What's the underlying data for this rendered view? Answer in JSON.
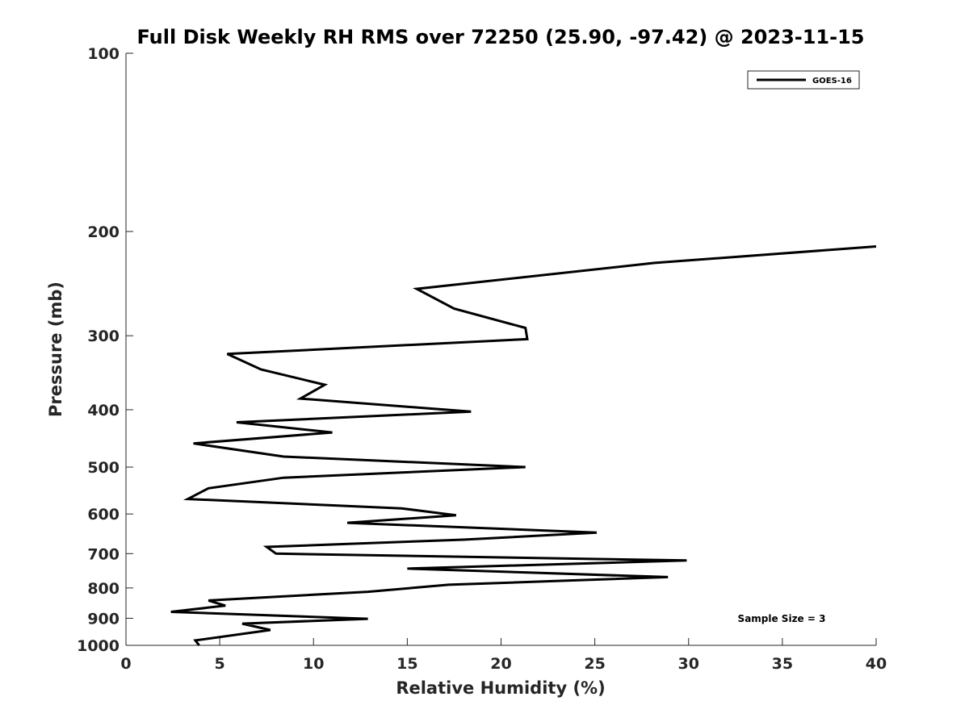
{
  "chart_data": {
    "type": "line",
    "title": "Full Disk Weekly RH RMS over 72250 (25.90, -97.42) @ 2023-11-15",
    "xlabel": "Relative Humidity (%)",
    "ylabel": "Pressure (mb)",
    "xlim": [
      0,
      40
    ],
    "ylim": [
      100,
      1000
    ],
    "y_scale": "log",
    "y_reversed": true,
    "grid": false,
    "legend_position": "top-right",
    "x_ticks": [
      0,
      5,
      10,
      15,
      20,
      25,
      30,
      35,
      40
    ],
    "x_tick_labels": [
      "0",
      "5",
      "10",
      "15",
      "20",
      "25",
      "30",
      "35",
      "40"
    ],
    "y_ticks": [
      100,
      200,
      300,
      400,
      500,
      600,
      700,
      800,
      900,
      1000
    ],
    "y_tick_labels": [
      "100",
      "200",
      "300",
      "400",
      "500",
      "600",
      "700",
      "800",
      "900",
      "1000"
    ],
    "annotation": "Sample Size = 3",
    "series": [
      {
        "name": "GOES-16",
        "color": "#000000",
        "points": [
          [
            40.0,
            212
          ],
          [
            28.2,
            226
          ],
          [
            15.5,
            250
          ],
          [
            17.5,
            270
          ],
          [
            21.3,
            291
          ],
          [
            21.4,
            304
          ],
          [
            5.4,
            322
          ],
          [
            7.2,
            342
          ],
          [
            10.6,
            363
          ],
          [
            9.3,
            383
          ],
          [
            18.4,
            403
          ],
          [
            5.9,
            420
          ],
          [
            11.0,
            437
          ],
          [
            3.6,
            456
          ],
          [
            8.4,
            480
          ],
          [
            21.3,
            500
          ],
          [
            8.4,
            521
          ],
          [
            4.4,
            543
          ],
          [
            3.3,
            566
          ],
          [
            14.7,
            587
          ],
          [
            17.6,
            603
          ],
          [
            11.8,
            621
          ],
          [
            25.1,
            645
          ],
          [
            18.0,
            663
          ],
          [
            7.5,
            682
          ],
          [
            8.0,
            700
          ],
          [
            29.9,
            719
          ],
          [
            15.0,
            742
          ],
          [
            28.9,
            767
          ],
          [
            17.2,
            790
          ],
          [
            12.9,
            812
          ],
          [
            4.4,
            840
          ],
          [
            5.3,
            857
          ],
          [
            2.4,
            878
          ],
          [
            12.9,
            902
          ],
          [
            6.2,
            919
          ],
          [
            7.7,
            942
          ],
          [
            3.7,
            981
          ],
          [
            3.9,
            1000
          ]
        ]
      }
    ]
  }
}
